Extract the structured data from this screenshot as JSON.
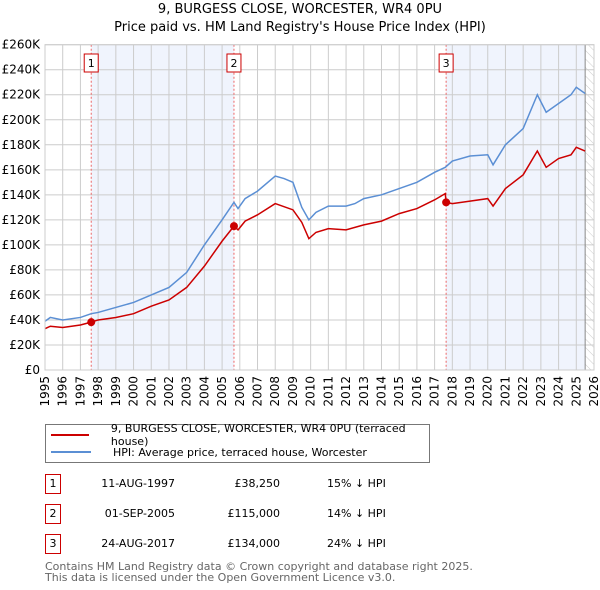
{
  "title": "9, BURGESS CLOSE, WORCESTER, WR4 0PU",
  "subtitle": "Price paid vs. HM Land Registry's House Price Index (HPI)",
  "chart_data": {
    "type": "line",
    "xlim": [
      1995,
      2026
    ],
    "ylim": [
      0,
      260000
    ],
    "y_ticks": [
      0,
      20000,
      40000,
      60000,
      80000,
      100000,
      120000,
      140000,
      160000,
      180000,
      200000,
      220000,
      240000,
      260000
    ],
    "y_tick_labels": [
      "£0",
      "£20K",
      "£40K",
      "£60K",
      "£80K",
      "£100K",
      "£120K",
      "£140K",
      "£160K",
      "£180K",
      "£200K",
      "£220K",
      "£240K",
      "£260K"
    ],
    "x_ticks": [
      1995,
      1996,
      1997,
      1998,
      1999,
      2000,
      2001,
      2002,
      2003,
      2004,
      2005,
      2006,
      2007,
      2008,
      2009,
      2010,
      2011,
      2012,
      2013,
      2014,
      2015,
      2016,
      2017,
      2018,
      2019,
      2020,
      2021,
      2022,
      2023,
      2024,
      2025,
      2026
    ],
    "grid": true,
    "series": [
      {
        "name": "9, BURGESS CLOSE, WORCESTER, WR4 0PU (terraced house)",
        "color": "#cc0000",
        "x": [
          1995,
          1995.3,
          1996,
          1997,
          1997.61,
          1998,
          1999,
          2000,
          2001,
          2002,
          2003,
          2004,
          2005,
          2005.67,
          2005.9,
          2006.3,
          2007,
          2008,
          2009,
          2009.5,
          2009.9,
          2010.3,
          2011,
          2012,
          2013,
          2014,
          2015,
          2016,
          2017,
          2017.6,
          2017.65,
          2018,
          2019,
          2020,
          2020.3,
          2021,
          2022,
          2022.8,
          2023.3,
          2024,
          2024.7,
          2025,
          2025.5
        ],
        "y": [
          33000,
          35000,
          34000,
          36000,
          38250,
          40000,
          42000,
          45000,
          51000,
          56000,
          66000,
          83000,
          103000,
          115000,
          112000,
          119000,
          124000,
          133000,
          128000,
          118000,
          105000,
          110000,
          113000,
          112000,
          116000,
          119000,
          125000,
          129000,
          136000,
          141000,
          134000,
          133000,
          135000,
          137000,
          131000,
          145000,
          156000,
          175000,
          162000,
          169000,
          172000,
          178000,
          175000
        ]
      },
      {
        "name": "HPI: Average price, terraced house, Worcester",
        "color": "#5b8fd4",
        "x": [
          1995,
          1995.3,
          1996,
          1997,
          1997.61,
          1998,
          1999,
          2000,
          2001,
          2002,
          2003,
          2004,
          2005,
          2005.67,
          2005.9,
          2006.3,
          2007,
          2008,
          2008.5,
          2009,
          2009.5,
          2009.9,
          2010.3,
          2011,
          2012,
          2012.5,
          2013,
          2014,
          2015,
          2016,
          2017,
          2017.6,
          2018,
          2019,
          2020,
          2020.3,
          2021,
          2022,
          2022.8,
          2023.3,
          2024,
          2024.7,
          2025,
          2025.5
        ],
        "y": [
          39000,
          42000,
          40000,
          42000,
          45000,
          46000,
          50000,
          54000,
          60000,
          66000,
          78000,
          100000,
          120000,
          134000,
          129000,
          137000,
          143000,
          155000,
          153000,
          150000,
          130000,
          120000,
          126000,
          131000,
          131000,
          133000,
          137000,
          140000,
          145000,
          150000,
          158000,
          162000,
          167000,
          171000,
          172000,
          164000,
          180000,
          193000,
          220000,
          206000,
          213000,
          220000,
          226000,
          221000
        ]
      }
    ],
    "sales": [
      {
        "label": "1",
        "x": 1997.61,
        "y": 38250
      },
      {
        "label": "2",
        "x": 2005.67,
        "y": 115000
      },
      {
        "label": "3",
        "x": 2017.65,
        "y": 134000
      }
    ],
    "shaded_ranges": [
      [
        1997.61,
        2005.67
      ],
      [
        2017.65,
        2025.5
      ]
    ],
    "hatched_from": 2025.5
  },
  "legend": {
    "property": "9, BURGESS CLOSE, WORCESTER, WR4 0PU (terraced house)",
    "hpi": "HPI: Average price, terraced house, Worcester"
  },
  "colors": {
    "property": "#cc0000",
    "hpi": "#5b8fd4"
  },
  "transactions": [
    {
      "num": "1",
      "date": "11-AUG-1997",
      "price": "£38,250",
      "hpi": "15% ↓ HPI"
    },
    {
      "num": "2",
      "date": "01-SEP-2005",
      "price": "£115,000",
      "hpi": "14% ↓ HPI"
    },
    {
      "num": "3",
      "date": "24-AUG-2017",
      "price": "£134,000",
      "hpi": "24% ↓ HPI"
    }
  ],
  "footer": [
    "Contains HM Land Registry data © Crown copyright and database right 2025.",
    "This data is licensed under the Open Government Licence v3.0."
  ]
}
